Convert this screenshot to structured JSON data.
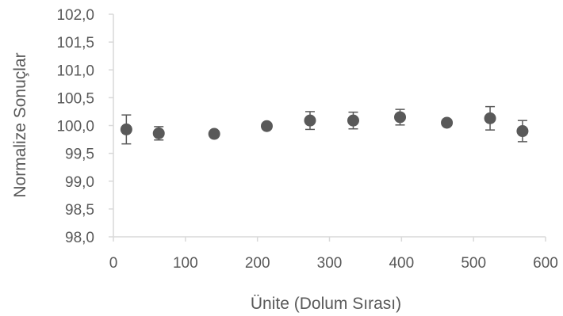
{
  "chart_data": {
    "type": "scatter",
    "title": "",
    "xlabel": "Ünite (Dolum Sırası)",
    "ylabel": "Normalize Sonuçlar",
    "xlim": [
      0,
      600
    ],
    "ylim": [
      98.0,
      102.0
    ],
    "x_ticks": [
      0,
      100,
      200,
      300,
      400,
      500,
      600
    ],
    "x_tick_labels": [
      "0",
      "100",
      "200",
      "300",
      "400",
      "500",
      "600"
    ],
    "y_ticks": [
      98.0,
      98.5,
      99.0,
      99.5,
      100.0,
      100.5,
      101.0,
      101.5,
      102.0
    ],
    "y_tick_labels": [
      "98,0",
      "98,5",
      "99,0",
      "99,5",
      "100,0",
      "100,5",
      "101,0",
      "101,5",
      "102,0"
    ],
    "grid": false,
    "legend": "none",
    "marker_color": "#595959",
    "axis_color": "#d9d9d9",
    "series": [
      {
        "points": [
          {
            "x": 18,
            "y": 99.93,
            "err": 0.26
          },
          {
            "x": 63,
            "y": 99.86,
            "err": 0.12
          },
          {
            "x": 140,
            "y": 99.85,
            "err": 0
          },
          {
            "x": 213,
            "y": 99.99,
            "err": 0
          },
          {
            "x": 273,
            "y": 100.09,
            "err": 0.16
          },
          {
            "x": 333,
            "y": 100.09,
            "err": 0.15
          },
          {
            "x": 398,
            "y": 100.15,
            "err": 0.14
          },
          {
            "x": 463,
            "y": 100.05,
            "err": 0
          },
          {
            "x": 523,
            "y": 100.13,
            "err": 0.21
          },
          {
            "x": 568,
            "y": 99.9,
            "err": 0.19
          }
        ]
      }
    ]
  }
}
